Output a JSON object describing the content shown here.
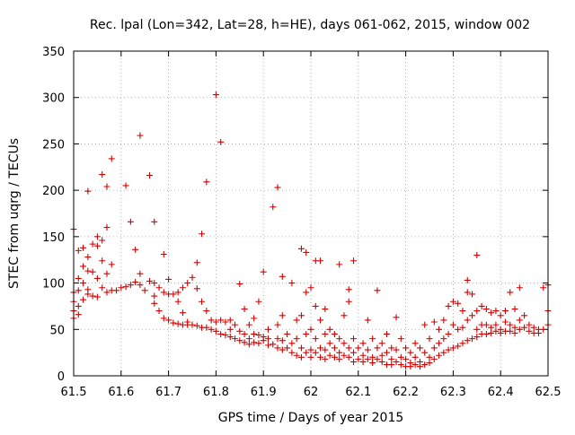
{
  "chart_data": {
    "type": "scatter",
    "title": "Rec. lpal (Lon=342, Lat=28, h=HE), days 061-062, 2015, window 002",
    "xlabel": "GPS time / Days of year 2015",
    "ylabel": "STEC from uqrg / TECUs",
    "xlim": [
      61.5,
      62.5
    ],
    "ylim": [
      0,
      350
    ],
    "grid": true,
    "marker": "+",
    "color": "#d40000",
    "x_ticks": [
      "61.5",
      "61.6",
      "61.7",
      "61.8",
      "61.9",
      "62",
      "62.1",
      "62.2",
      "62.3",
      "62.4",
      "62.5"
    ],
    "y_ticks": [
      "0",
      "50",
      "100",
      "150",
      "200",
      "250",
      "300",
      "350"
    ],
    "series": [
      {
        "points": [
          [
            61.5,
            158
          ],
          [
            61.5,
            90
          ],
          [
            61.5,
            80
          ],
          [
            61.5,
            70
          ],
          [
            61.5,
            62
          ],
          [
            61.51,
            135
          ],
          [
            61.51,
            105
          ],
          [
            61.51,
            92
          ],
          [
            61.51,
            75
          ],
          [
            61.51,
            66
          ],
          [
            61.52,
            138
          ],
          [
            61.52,
            118
          ],
          [
            61.52,
            100
          ],
          [
            61.52,
            82
          ],
          [
            61.53,
            199
          ],
          [
            61.53,
            128
          ],
          [
            61.53,
            113
          ],
          [
            61.53,
            93
          ],
          [
            61.53,
            88
          ],
          [
            61.54,
            142
          ],
          [
            61.54,
            112
          ],
          [
            61.54,
            86
          ],
          [
            61.55,
            150
          ],
          [
            61.55,
            140
          ],
          [
            61.55,
            105
          ],
          [
            61.55,
            85
          ],
          [
            61.56,
            217
          ],
          [
            61.56,
            146
          ],
          [
            61.56,
            124
          ],
          [
            61.56,
            95
          ],
          [
            61.57,
            204
          ],
          [
            61.57,
            160
          ],
          [
            61.57,
            110
          ],
          [
            61.57,
            90
          ],
          [
            61.58,
            234
          ],
          [
            61.58,
            120
          ],
          [
            61.58,
            92
          ],
          [
            61.59,
            92
          ],
          [
            61.6,
            95
          ],
          [
            61.61,
            205
          ],
          [
            61.61,
            96
          ],
          [
            61.62,
            166
          ],
          [
            61.62,
            98
          ],
          [
            61.63,
            136
          ],
          [
            61.63,
            101
          ],
          [
            61.64,
            259
          ],
          [
            61.64,
            110
          ],
          [
            61.64,
            98
          ],
          [
            61.65,
            92
          ],
          [
            61.66,
            216
          ],
          [
            61.66,
            102
          ],
          [
            61.67,
            166
          ],
          [
            61.67,
            100
          ],
          [
            61.67,
            86
          ],
          [
            61.67,
            78
          ],
          [
            61.68,
            95
          ],
          [
            61.68,
            70
          ],
          [
            61.69,
            131
          ],
          [
            61.69,
            90
          ],
          [
            61.69,
            62
          ],
          [
            61.7,
            104
          ],
          [
            61.7,
            88
          ],
          [
            61.7,
            60
          ],
          [
            61.71,
            88
          ],
          [
            61.71,
            57
          ],
          [
            61.72,
            90
          ],
          [
            61.72,
            80
          ],
          [
            61.72,
            56
          ],
          [
            61.73,
            95
          ],
          [
            61.73,
            68
          ],
          [
            61.73,
            55
          ],
          [
            61.74,
            100
          ],
          [
            61.74,
            58
          ],
          [
            61.74,
            55
          ],
          [
            61.75,
            106
          ],
          [
            61.75,
            55
          ],
          [
            61.76,
            122
          ],
          [
            61.76,
            94
          ],
          [
            61.76,
            54
          ],
          [
            61.77,
            153
          ],
          [
            61.77,
            80
          ],
          [
            61.77,
            52
          ],
          [
            61.78,
            209
          ],
          [
            61.78,
            70
          ],
          [
            61.78,
            52
          ],
          [
            61.79,
            60
          ],
          [
            61.79,
            50
          ],
          [
            61.8,
            303
          ],
          [
            61.8,
            58
          ],
          [
            61.8,
            48
          ],
          [
            61.81,
            252
          ],
          [
            61.81,
            60
          ],
          [
            61.81,
            45
          ],
          [
            61.82,
            58
          ],
          [
            61.82,
            44
          ],
          [
            61.83,
            60
          ],
          [
            61.83,
            50
          ],
          [
            61.83,
            42
          ],
          [
            61.84,
            55
          ],
          [
            61.84,
            40
          ],
          [
            61.85,
            99
          ],
          [
            61.85,
            48
          ],
          [
            61.85,
            38
          ],
          [
            61.86,
            72
          ],
          [
            61.86,
            45
          ],
          [
            61.86,
            36
          ],
          [
            61.87,
            55
          ],
          [
            61.87,
            40
          ],
          [
            61.87,
            34
          ],
          [
            61.88,
            62
          ],
          [
            61.88,
            45
          ],
          [
            61.88,
            36
          ],
          [
            61.89,
            80
          ],
          [
            61.89,
            44
          ],
          [
            61.89,
            35
          ],
          [
            61.9,
            112
          ],
          [
            61.9,
            42
          ],
          [
            61.9,
            38
          ],
          [
            61.91,
            50
          ],
          [
            61.91,
            40
          ],
          [
            61.91,
            33
          ],
          [
            61.92,
            182
          ],
          [
            61.92,
            34
          ],
          [
            61.93,
            203
          ],
          [
            61.93,
            55
          ],
          [
            61.93,
            40
          ],
          [
            61.93,
            30
          ],
          [
            61.94,
            107
          ],
          [
            61.94,
            65
          ],
          [
            61.94,
            38
          ],
          [
            61.94,
            28
          ],
          [
            61.95,
            45
          ],
          [
            61.95,
            30
          ],
          [
            61.96,
            100
          ],
          [
            61.96,
            35
          ],
          [
            61.96,
            25
          ],
          [
            61.97,
            60
          ],
          [
            61.97,
            40
          ],
          [
            61.97,
            22
          ],
          [
            61.98,
            137
          ],
          [
            61.98,
            65
          ],
          [
            61.98,
            30
          ],
          [
            61.98,
            20
          ],
          [
            61.99,
            133
          ],
          [
            61.99,
            90
          ],
          [
            61.99,
            45
          ],
          [
            61.99,
            25
          ],
          [
            62.0,
            95
          ],
          [
            62.0,
            50
          ],
          [
            62.0,
            28
          ],
          [
            62.0,
            20
          ],
          [
            62.01,
            124
          ],
          [
            62.01,
            75
          ],
          [
            62.01,
            40
          ],
          [
            62.01,
            25
          ],
          [
            62.02,
            124
          ],
          [
            62.02,
            60
          ],
          [
            62.02,
            30
          ],
          [
            62.02,
            20
          ],
          [
            62.03,
            72
          ],
          [
            62.03,
            45
          ],
          [
            62.03,
            28
          ],
          [
            62.03,
            18
          ],
          [
            62.04,
            50
          ],
          [
            62.04,
            35
          ],
          [
            62.04,
            22
          ],
          [
            62.05,
            45
          ],
          [
            62.05,
            30
          ],
          [
            62.05,
            20
          ],
          [
            62.06,
            120
          ],
          [
            62.06,
            40
          ],
          [
            62.06,
            25
          ],
          [
            62.06,
            18
          ],
          [
            62.07,
            65
          ],
          [
            62.07,
            35
          ],
          [
            62.07,
            22
          ],
          [
            62.08,
            93
          ],
          [
            62.08,
            80
          ],
          [
            62.08,
            30
          ],
          [
            62.08,
            20
          ],
          [
            62.09,
            124
          ],
          [
            62.09,
            40
          ],
          [
            62.09,
            25
          ],
          [
            62.09,
            15
          ],
          [
            62.1,
            30
          ],
          [
            62.1,
            18
          ],
          [
            62.11,
            35
          ],
          [
            62.11,
            22
          ],
          [
            62.11,
            15
          ],
          [
            62.12,
            60
          ],
          [
            62.12,
            28
          ],
          [
            62.12,
            18
          ],
          [
            62.13,
            40
          ],
          [
            62.13,
            20
          ],
          [
            62.13,
            14
          ],
          [
            62.14,
            92
          ],
          [
            62.14,
            30
          ],
          [
            62.14,
            18
          ],
          [
            62.15,
            35
          ],
          [
            62.15,
            22
          ],
          [
            62.15,
            15
          ],
          [
            62.16,
            45
          ],
          [
            62.16,
            25
          ],
          [
            62.16,
            12
          ],
          [
            62.17,
            30
          ],
          [
            62.17,
            18
          ],
          [
            62.17,
            12
          ],
          [
            62.18,
            63
          ],
          [
            62.18,
            28
          ],
          [
            62.18,
            15
          ],
          [
            62.19,
            40
          ],
          [
            62.19,
            20
          ],
          [
            62.19,
            12
          ],
          [
            62.2,
            30
          ],
          [
            62.2,
            18
          ],
          [
            62.2,
            10
          ],
          [
            62.21,
            25
          ],
          [
            62.21,
            14
          ],
          [
            62.21,
            10
          ],
          [
            62.22,
            35
          ],
          [
            62.22,
            20
          ],
          [
            62.22,
            12
          ],
          [
            62.23,
            30
          ],
          [
            62.23,
            15
          ],
          [
            62.23,
            10
          ],
          [
            62.24,
            55
          ],
          [
            62.24,
            25
          ],
          [
            62.24,
            12
          ],
          [
            62.25,
            40
          ],
          [
            62.25,
            20
          ],
          [
            62.25,
            14
          ],
          [
            62.26,
            58
          ],
          [
            62.26,
            30
          ],
          [
            62.26,
            18
          ],
          [
            62.27,
            50
          ],
          [
            62.27,
            35
          ],
          [
            62.27,
            22
          ],
          [
            62.28,
            60
          ],
          [
            62.28,
            40
          ],
          [
            62.28,
            25
          ],
          [
            62.29,
            75
          ],
          [
            62.29,
            45
          ],
          [
            62.29,
            28
          ],
          [
            62.3,
            80
          ],
          [
            62.3,
            55
          ],
          [
            62.3,
            30
          ],
          [
            62.31,
            78
          ],
          [
            62.31,
            50
          ],
          [
            62.31,
            32
          ],
          [
            62.32,
            70
          ],
          [
            62.32,
            52
          ],
          [
            62.32,
            35
          ],
          [
            62.33,
            103
          ],
          [
            62.33,
            90
          ],
          [
            62.33,
            60
          ],
          [
            62.33,
            38
          ],
          [
            62.34,
            88
          ],
          [
            62.34,
            65
          ],
          [
            62.34,
            40
          ],
          [
            62.35,
            130
          ],
          [
            62.35,
            70
          ],
          [
            62.35,
            50
          ],
          [
            62.35,
            42
          ],
          [
            62.36,
            75
          ],
          [
            62.36,
            55
          ],
          [
            62.36,
            45
          ],
          [
            62.37,
            72
          ],
          [
            62.37,
            55
          ],
          [
            62.37,
            45
          ],
          [
            62.38,
            68
          ],
          [
            62.38,
            52
          ],
          [
            62.38,
            46
          ],
          [
            62.39,
            70
          ],
          [
            62.39,
            55
          ],
          [
            62.39,
            48
          ],
          [
            62.4,
            65
          ],
          [
            62.4,
            50
          ],
          [
            62.4,
            46
          ],
          [
            62.41,
            70
          ],
          [
            62.41,
            58
          ],
          [
            62.41,
            48
          ],
          [
            62.42,
            90
          ],
          [
            62.42,
            55
          ],
          [
            62.42,
            48
          ],
          [
            62.43,
            72
          ],
          [
            62.43,
            52
          ],
          [
            62.43,
            46
          ],
          [
            62.44,
            95
          ],
          [
            62.44,
            60
          ],
          [
            62.44,
            50
          ],
          [
            62.45,
            65
          ],
          [
            62.45,
            52
          ],
          [
            62.46,
            55
          ],
          [
            62.46,
            48
          ],
          [
            62.47,
            52
          ],
          [
            62.47,
            46
          ],
          [
            62.48,
            50
          ],
          [
            62.48,
            46
          ],
          [
            62.49,
            95
          ],
          [
            62.49,
            50
          ],
          [
            62.5,
            98
          ],
          [
            62.5,
            70
          ],
          [
            62.5,
            55
          ]
        ]
      }
    ]
  }
}
